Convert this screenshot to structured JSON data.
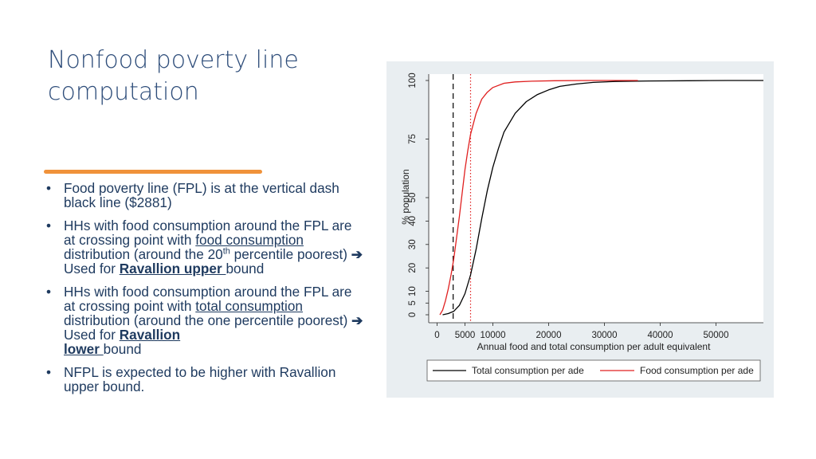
{
  "slide": {
    "title": "Nonfood poverty line computation",
    "accent_color": "#f0923a",
    "text_color": "#1e3a5f"
  },
  "bullets": {
    "b1": {
      "marker": "•",
      "text": "Food poverty line (FPL) is at the vertical dash black line ($2881)"
    },
    "b2": {
      "marker": "•",
      "t1": "HHs with food consumption around the FPL are at crossing point with ",
      "u1": "food consumption",
      "t2": " distribution (around the 20",
      "sup": "th",
      "t3": " percentile poorest) ",
      "arrow": "➔",
      "t4": " Used for ",
      "bold_u": "Ravallion upper ",
      "t5": "bound"
    },
    "b3": {
      "marker": "•",
      "t1": "HHs with food consumption around the FPL are at crossing point with ",
      "u1": "total consumption",
      "t2": " distribution (around the one percentile poorest) ",
      "arrow": "➔",
      "t3": " Used for ",
      "bold_u1": "Ravallion",
      "bold_u2": "lower ",
      "t4": "bound"
    },
    "b4": {
      "marker": "•",
      "text": "NFPL is expected to be higher with Ravallion upper bound."
    }
  },
  "chart_data": {
    "type": "line",
    "xlabel": "Annual food and total consumption per adult equivalent",
    "ylabel": "% population",
    "xlim": [
      -1500,
      58500
    ],
    "ylim": [
      0,
      100
    ],
    "x_ticks": [
      0,
      5000,
      10000,
      20000,
      30000,
      40000,
      50000
    ],
    "x_tick_labels": [
      "0",
      "5000",
      "10000",
      "20000",
      "30000",
      "40000",
      "50000"
    ],
    "y_ticks": [
      0,
      5,
      10,
      20,
      30,
      40,
      50,
      75,
      100
    ],
    "y_tick_labels": [
      "0",
      "5",
      "10",
      "20",
      "30",
      "40",
      "50",
      "75",
      "100"
    ],
    "background_color": "#e9eef1",
    "plot_background_color": "#ffffff",
    "legend_position": "bottom",
    "reference_lines": [
      {
        "x": 2881,
        "style": "dashed",
        "color": "#000000"
      },
      {
        "x": 6000,
        "style": "dotted",
        "color": "#e02020"
      }
    ],
    "series": [
      {
        "name": "Total consumption per ade",
        "color": "#000000",
        "x": [
          1000,
          2000,
          3000,
          4000,
          5000,
          6000,
          7000,
          8000,
          9000,
          10000,
          11000,
          12000,
          14000,
          16000,
          18000,
          20000,
          22000,
          25000,
          28000,
          32000,
          38000,
          45000,
          52000,
          58500
        ],
        "y": [
          0,
          0.5,
          1.5,
          4,
          9,
          17,
          28,
          41,
          53,
          63,
          71,
          78,
          86,
          91,
          94,
          96,
          97.5,
          98.5,
          99.2,
          99.6,
          99.8,
          99.9,
          100,
          100
        ]
      },
      {
        "name": "Food consumption per ade",
        "color": "#e02020",
        "x": [
          500,
          1000,
          1500,
          2000,
          2500,
          3000,
          3500,
          4000,
          4500,
          5000,
          5500,
          6000,
          7000,
          8000,
          9000,
          10000,
          12000,
          14000,
          17000,
          21000,
          27000,
          36000
        ],
        "y": [
          0,
          2,
          6,
          11,
          17,
          24,
          33,
          42,
          52,
          62,
          70,
          77,
          86,
          92,
          95,
          97,
          98.8,
          99.4,
          99.7,
          99.9,
          100,
          100
        ]
      }
    ]
  }
}
